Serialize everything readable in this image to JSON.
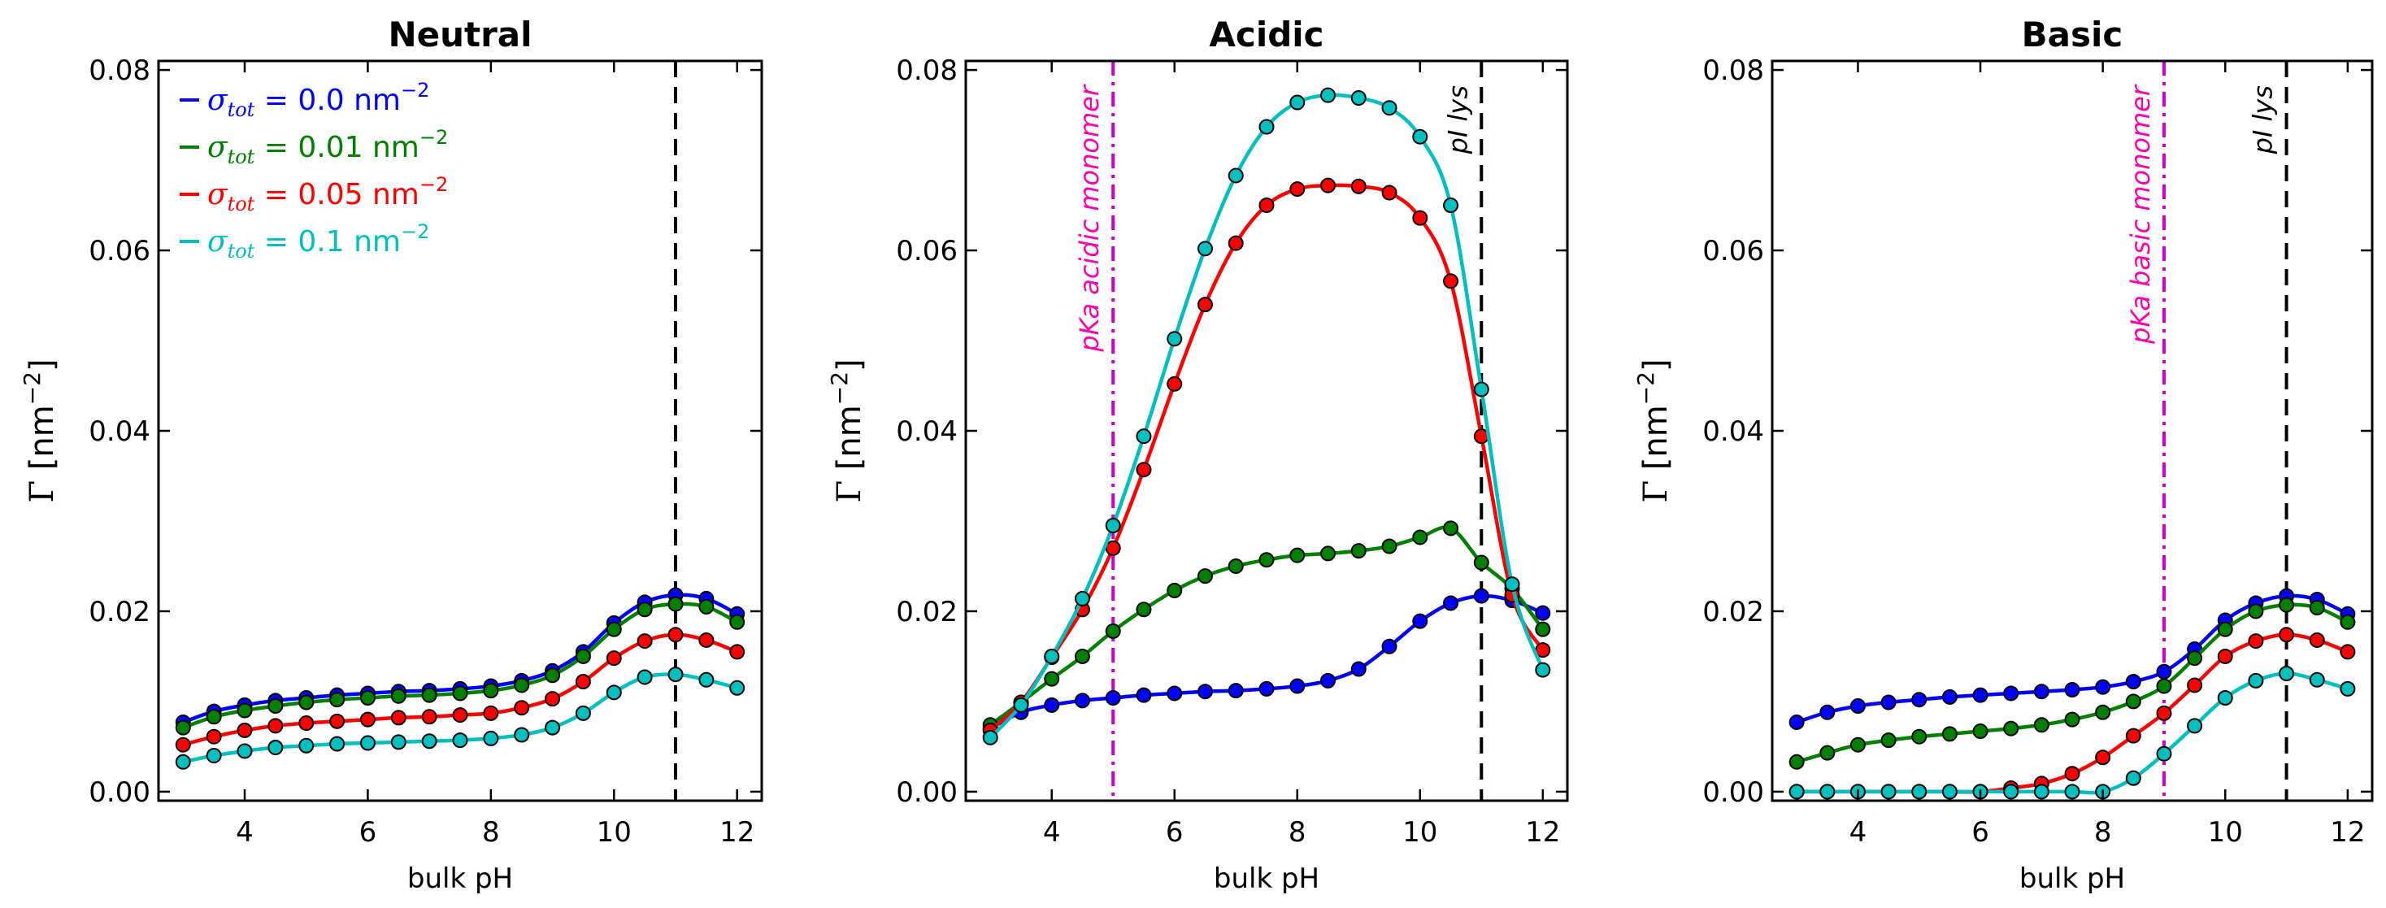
{
  "chart_data": [
    {
      "type": "line",
      "title": "Neutral",
      "xlabel": "bulk pH",
      "ylabel_symbol": "Γ",
      "ylabel_unit": "[nm",
      "ylabel_exp": "−2",
      "ylabel_close": "]",
      "xlim": [
        2.6,
        12.4
      ],
      "ylim": [
        -0.001,
        0.081
      ],
      "xticks": [
        4,
        6,
        8,
        10,
        12
      ],
      "yticks": [
        0.0,
        0.02,
        0.04,
        0.06,
        0.08
      ],
      "ytick_labels": [
        "0.00",
        "0.02",
        "0.04",
        "0.06",
        "0.08"
      ],
      "vlines": [
        {
          "x": 11,
          "style": "dashed",
          "color": "#000000",
          "label": ""
        }
      ],
      "legend": [
        {
          "text_symbol": "σ",
          "text_sub": "tot",
          "text_value": " = 0.0 nm",
          "text_exp": "−2",
          "color": "#0000ff"
        },
        {
          "text_symbol": "σ",
          "text_sub": "tot",
          "text_value": " = 0.01 nm",
          "text_exp": "−2",
          "color": "#008000"
        },
        {
          "text_symbol": "σ",
          "text_sub": "tot",
          "text_value": " = 0.05 nm",
          "text_exp": "−2",
          "color": "#ff0000"
        },
        {
          "text_symbol": "σ",
          "text_sub": "tot",
          "text_value": " = 0.1 nm",
          "text_exp": "−2",
          "color": "#00bfbf"
        }
      ],
      "x": [
        3.0,
        3.5,
        4.0,
        4.5,
        5.0,
        5.5,
        6.0,
        6.5,
        7.0,
        7.5,
        8.0,
        8.5,
        9.0,
        9.5,
        10.0,
        10.5,
        11.0,
        11.5,
        12.0
      ],
      "series": [
        {
          "name": "σ_tot = 0.0 nm^-2",
          "color": "#0000ff",
          "values": [
            0.0077,
            0.0089,
            0.0096,
            0.0101,
            0.0104,
            0.0107,
            0.0109,
            0.0111,
            0.0112,
            0.0114,
            0.0117,
            0.0123,
            0.0134,
            0.0155,
            0.0187,
            0.021,
            0.0218,
            0.0214,
            0.0197
          ]
        },
        {
          "name": "σ_tot = 0.01 nm^-2",
          "color": "#008000",
          "values": [
            0.0071,
            0.0083,
            0.009,
            0.0095,
            0.0099,
            0.0102,
            0.0104,
            0.0106,
            0.0107,
            0.0109,
            0.0112,
            0.0118,
            0.0129,
            0.015,
            0.018,
            0.0202,
            0.0208,
            0.0205,
            0.0188
          ]
        },
        {
          "name": "σ_tot = 0.05 nm^-2",
          "color": "#ff0000",
          "values": [
            0.0052,
            0.0061,
            0.0068,
            0.0073,
            0.0076,
            0.0078,
            0.008,
            0.0082,
            0.0083,
            0.0085,
            0.0087,
            0.0093,
            0.0103,
            0.0122,
            0.0148,
            0.0167,
            0.0174,
            0.0168,
            0.0155
          ]
        },
        {
          "name": "σ_tot = 0.1 nm^-2",
          "color": "#00bfbf",
          "values": [
            0.0033,
            0.004,
            0.0045,
            0.0049,
            0.0051,
            0.0053,
            0.0054,
            0.0055,
            0.0056,
            0.0057,
            0.0059,
            0.0063,
            0.0071,
            0.0087,
            0.011,
            0.0127,
            0.013,
            0.0124,
            0.0115
          ]
        }
      ]
    },
    {
      "type": "line",
      "title": "Acidic",
      "xlabel": "bulk pH",
      "ylabel_symbol": "Γ",
      "ylabel_unit": "[nm",
      "ylabel_exp": "−2",
      "ylabel_close": "]",
      "xlim": [
        2.6,
        12.4
      ],
      "ylim": [
        -0.001,
        0.081
      ],
      "xticks": [
        4,
        6,
        8,
        10,
        12
      ],
      "yticks": [
        0.0,
        0.02,
        0.04,
        0.06,
        0.08
      ],
      "ytick_labels": [
        "0.00",
        "0.02",
        "0.04",
        "0.06",
        "0.08"
      ],
      "vlines": [
        {
          "x": 5,
          "style": "dashdot",
          "color": "#cc00cc",
          "label": "pKa acidic monomer",
          "label_color": "#ff00aa"
        },
        {
          "x": 11,
          "style": "dashed",
          "color": "#000000",
          "label": "pI lys",
          "label_color": "#000000"
        }
      ],
      "legend": [],
      "x": [
        3.0,
        3.5,
        4.0,
        4.5,
        5.0,
        5.5,
        6.0,
        6.5,
        7.0,
        7.5,
        8.0,
        8.5,
        9.0,
        9.5,
        10.0,
        10.5,
        11.0,
        11.5,
        12.0
      ],
      "series": [
        {
          "name": "σ_tot = 0.0 nm^-2",
          "color": "#0000ff",
          "values": [
            0.007,
            0.0088,
            0.0096,
            0.0101,
            0.0104,
            0.0107,
            0.0109,
            0.0111,
            0.0112,
            0.0114,
            0.0117,
            0.0123,
            0.0136,
            0.0161,
            0.0189,
            0.0209,
            0.0217,
            0.0212,
            0.0198
          ]
        },
        {
          "name": "σ_tot = 0.01 nm^-2",
          "color": "#008000",
          "values": [
            0.0074,
            0.0099,
            0.0125,
            0.015,
            0.0178,
            0.0202,
            0.0223,
            0.0239,
            0.025,
            0.0257,
            0.0262,
            0.0264,
            0.0267,
            0.0272,
            0.0282,
            0.0292,
            0.0254,
            0.0225,
            0.018
          ]
        },
        {
          "name": "σ_tot = 0.05 nm^-2",
          "color": "#ff0000",
          "values": [
            0.0068,
            0.0099,
            0.0149,
            0.0202,
            0.027,
            0.0357,
            0.0452,
            0.054,
            0.0608,
            0.065,
            0.0668,
            0.0672,
            0.0671,
            0.0664,
            0.0636,
            0.0566,
            0.0394,
            0.0218,
            0.0157
          ]
        },
        {
          "name": "σ_tot = 0.1 nm^-2",
          "color": "#00bfbf",
          "values": [
            0.006,
            0.0096,
            0.015,
            0.0214,
            0.0295,
            0.0394,
            0.0502,
            0.0602,
            0.0683,
            0.0737,
            0.0764,
            0.0772,
            0.0769,
            0.0758,
            0.0726,
            0.065,
            0.0446,
            0.023,
            0.0135
          ]
        }
      ]
    },
    {
      "type": "line",
      "title": "Basic",
      "xlabel": "bulk pH",
      "ylabel_symbol": "Γ",
      "ylabel_unit": "[nm",
      "ylabel_exp": "−2",
      "ylabel_close": "]",
      "xlim": [
        2.6,
        12.4
      ],
      "ylim": [
        -0.001,
        0.081
      ],
      "xticks": [
        4,
        6,
        8,
        10,
        12
      ],
      "yticks": [
        0.0,
        0.02,
        0.04,
        0.06,
        0.08
      ],
      "ytick_labels": [
        "0.00",
        "0.02",
        "0.04",
        "0.06",
        "0.08"
      ],
      "vlines": [
        {
          "x": 9,
          "style": "dashdot",
          "color": "#cc00cc",
          "label": "pKa basic monomer",
          "label_color": "#ff00aa"
        },
        {
          "x": 11,
          "style": "dashed",
          "color": "#000000",
          "label": "pI lys",
          "label_color": "#000000"
        }
      ],
      "legend": [],
      "x": [
        3.0,
        3.5,
        4.0,
        4.5,
        5.0,
        5.5,
        6.0,
        6.5,
        7.0,
        7.5,
        8.0,
        8.5,
        9.0,
        9.5,
        10.0,
        10.5,
        11.0,
        11.5,
        12.0
      ],
      "series": [
        {
          "name": "σ_tot = 0.0 nm^-2",
          "color": "#0000ff",
          "values": [
            0.0077,
            0.0088,
            0.0095,
            0.0099,
            0.0102,
            0.0105,
            0.0107,
            0.0109,
            0.0111,
            0.0113,
            0.0116,
            0.0122,
            0.0133,
            0.0158,
            0.019,
            0.0209,
            0.0217,
            0.0213,
            0.0197
          ]
        },
        {
          "name": "σ_tot = 0.01 nm^-2",
          "color": "#008000",
          "values": [
            0.0033,
            0.0043,
            0.0052,
            0.0057,
            0.0061,
            0.0064,
            0.0067,
            0.007,
            0.0074,
            0.008,
            0.0088,
            0.01,
            0.0117,
            0.0148,
            0.018,
            0.02,
            0.0207,
            0.0204,
            0.0188
          ]
        },
        {
          "name": "σ_tot = 0.05 nm^-2",
          "color": "#ff0000",
          "values": [
            0.0,
            0.0,
            0.0,
            0.0,
            0.0,
            0.0,
            0.0,
            0.0004,
            0.0009,
            0.002,
            0.0038,
            0.0062,
            0.0087,
            0.0118,
            0.015,
            0.0167,
            0.0174,
            0.0168,
            0.0155
          ]
        },
        {
          "name": "σ_tot = 0.1 nm^-2",
          "color": "#00bfbf",
          "values": [
            0.0,
            0.0,
            0.0,
            0.0,
            0.0,
            0.0,
            0.0,
            0.0,
            0.0,
            0.0,
            0.0,
            0.0015,
            0.0042,
            0.0073,
            0.0104,
            0.0123,
            0.0131,
            0.0124,
            0.0114
          ]
        }
      ]
    }
  ]
}
